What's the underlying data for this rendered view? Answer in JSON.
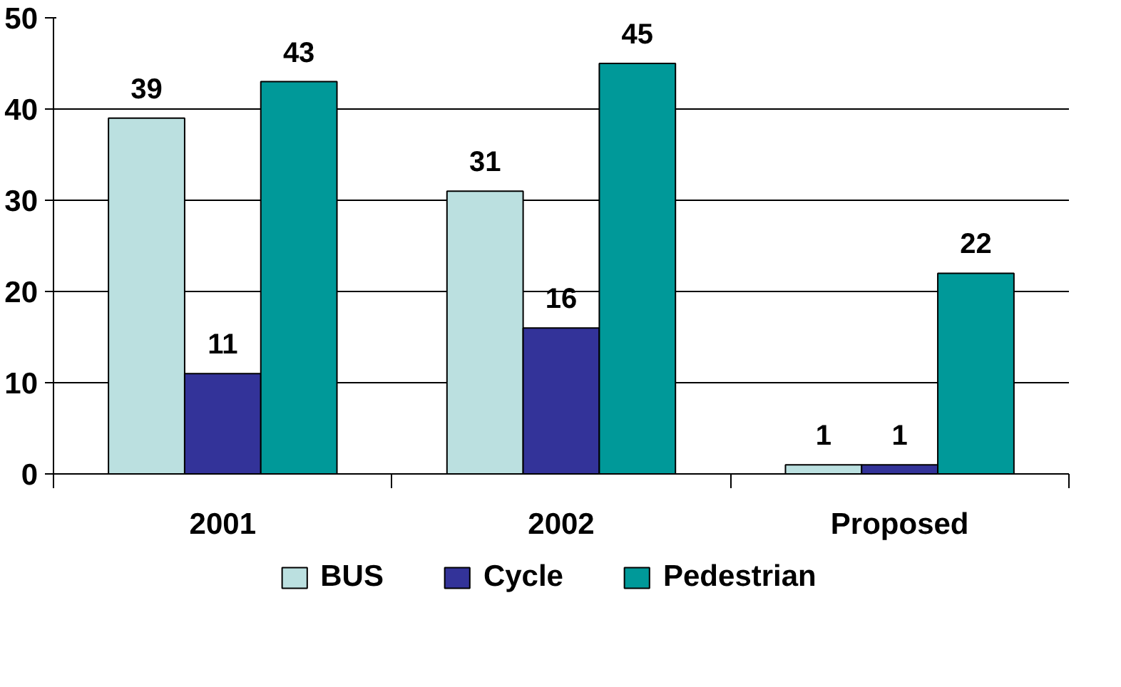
{
  "chart_data": {
    "type": "bar",
    "categories": [
      "2001",
      "2002",
      "Proposed"
    ],
    "series": [
      {
        "name": "BUS",
        "color": "#bbe0e0",
        "values": [
          39,
          31,
          1
        ]
      },
      {
        "name": "Cycle",
        "color": "#333399",
        "values": [
          11,
          16,
          1
        ]
      },
      {
        "name": "Pedestrian",
        "color": "#009999",
        "values": [
          43,
          45,
          22
        ]
      }
    ],
    "ylim": [
      0,
      50
    ],
    "yticks": [
      0,
      10,
      20,
      30,
      40,
      50
    ],
    "grid": "y",
    "legend": "bottom",
    "data_labels": true
  }
}
